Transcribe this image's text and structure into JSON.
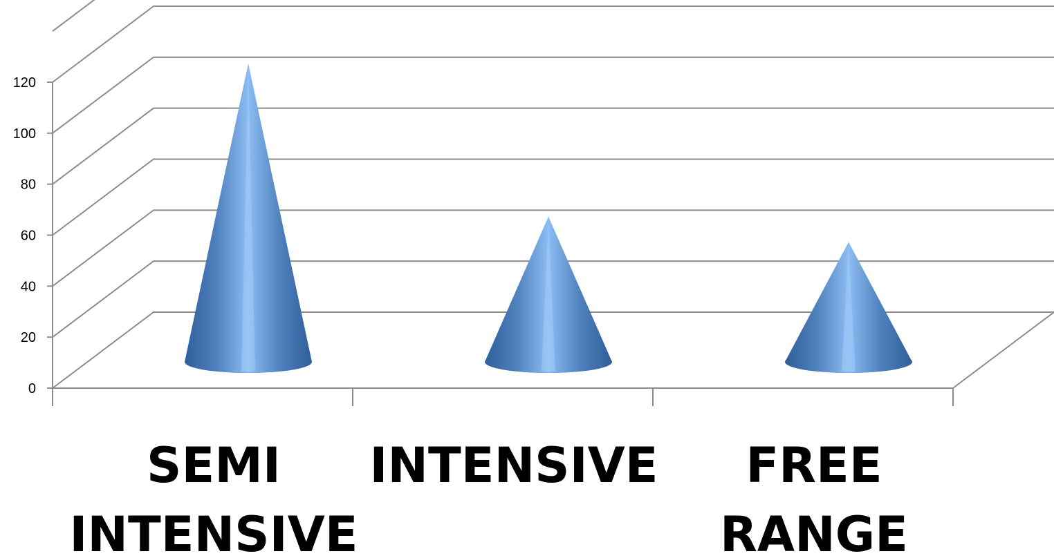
{
  "chart_data": {
    "type": "bar",
    "shape": "3d-cone",
    "title": "",
    "xlabel": "",
    "ylabel": "",
    "categories": [
      [
        "SEMI",
        "INTENSIVE"
      ],
      [
        "INTENSIVE"
      ],
      [
        "FREE",
        "RANGE"
      ]
    ],
    "values": [
      117,
      57,
      47
    ],
    "ylim": [
      0,
      140
    ],
    "yticks": [
      0,
      20,
      40,
      60,
      80,
      100,
      120
    ],
    "grid": true,
    "legend": "none",
    "colors": {
      "cone_dark": "#2f5f9a",
      "cone_mid": "#4f81bd",
      "cone_light": "#8cbcf2",
      "grid": "#8c8c8c"
    }
  }
}
